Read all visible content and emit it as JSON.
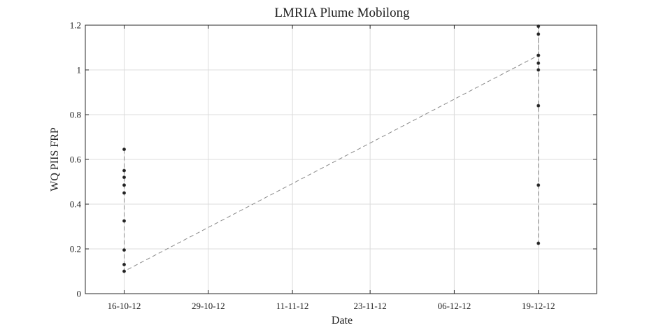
{
  "chart_data": {
    "type": "line",
    "title": "LMRIA Plume Mobilong",
    "xlabel": "Date",
    "ylabel": "WQ PIIS FRP",
    "grid": true,
    "ylim": [
      0,
      1.2
    ],
    "xlim": [
      "2012-10-10",
      "2012-12-28"
    ],
    "yticks": [
      "0",
      "0.2",
      "0.4",
      "0.6",
      "0.8",
      "1",
      "1.2"
    ],
    "xticks": [
      {
        "date": "2012-10-16",
        "label": "16-10-12"
      },
      {
        "date": "2012-10-29",
        "label": "29-10-12"
      },
      {
        "date": "2012-11-11",
        "label": "11-11-12"
      },
      {
        "date": "2012-11-23",
        "label": "23-11-12"
      },
      {
        "date": "2012-12-06",
        "label": "06-12-12"
      },
      {
        "date": "2012-12-19",
        "label": "19-12-12"
      }
    ],
    "series": [
      {
        "line_style": "dashed",
        "marker": "dot",
        "color": "#888888",
        "marker_color": "#222222",
        "points": [
          {
            "x": "2012-10-16",
            "y": 0.645
          },
          {
            "x": "2012-10-16",
            "y": 0.55
          },
          {
            "x": "2012-10-16",
            "y": 0.52
          },
          {
            "x": "2012-10-16",
            "y": 0.485
          },
          {
            "x": "2012-10-16",
            "y": 0.45
          },
          {
            "x": "2012-10-16",
            "y": 0.325
          },
          {
            "x": "2012-10-16",
            "y": 0.195
          },
          {
            "x": "2012-10-16",
            "y": 0.13
          },
          {
            "x": "2012-10-16",
            "y": 0.1
          },
          {
            "x": "2012-12-19",
            "y": 1.065
          },
          {
            "x": "2012-12-19",
            "y": 1.195
          },
          {
            "x": "2012-12-19",
            "y": 1.16
          },
          {
            "x": "2012-12-19",
            "y": 1.065
          },
          {
            "x": "2012-12-19",
            "y": 1.03
          },
          {
            "x": "2012-12-19",
            "y": 1.0
          },
          {
            "x": "2012-12-19",
            "y": 0.84
          },
          {
            "x": "2012-12-19",
            "y": 0.485
          },
          {
            "x": "2012-12-19",
            "y": 0.225
          }
        ]
      }
    ]
  }
}
